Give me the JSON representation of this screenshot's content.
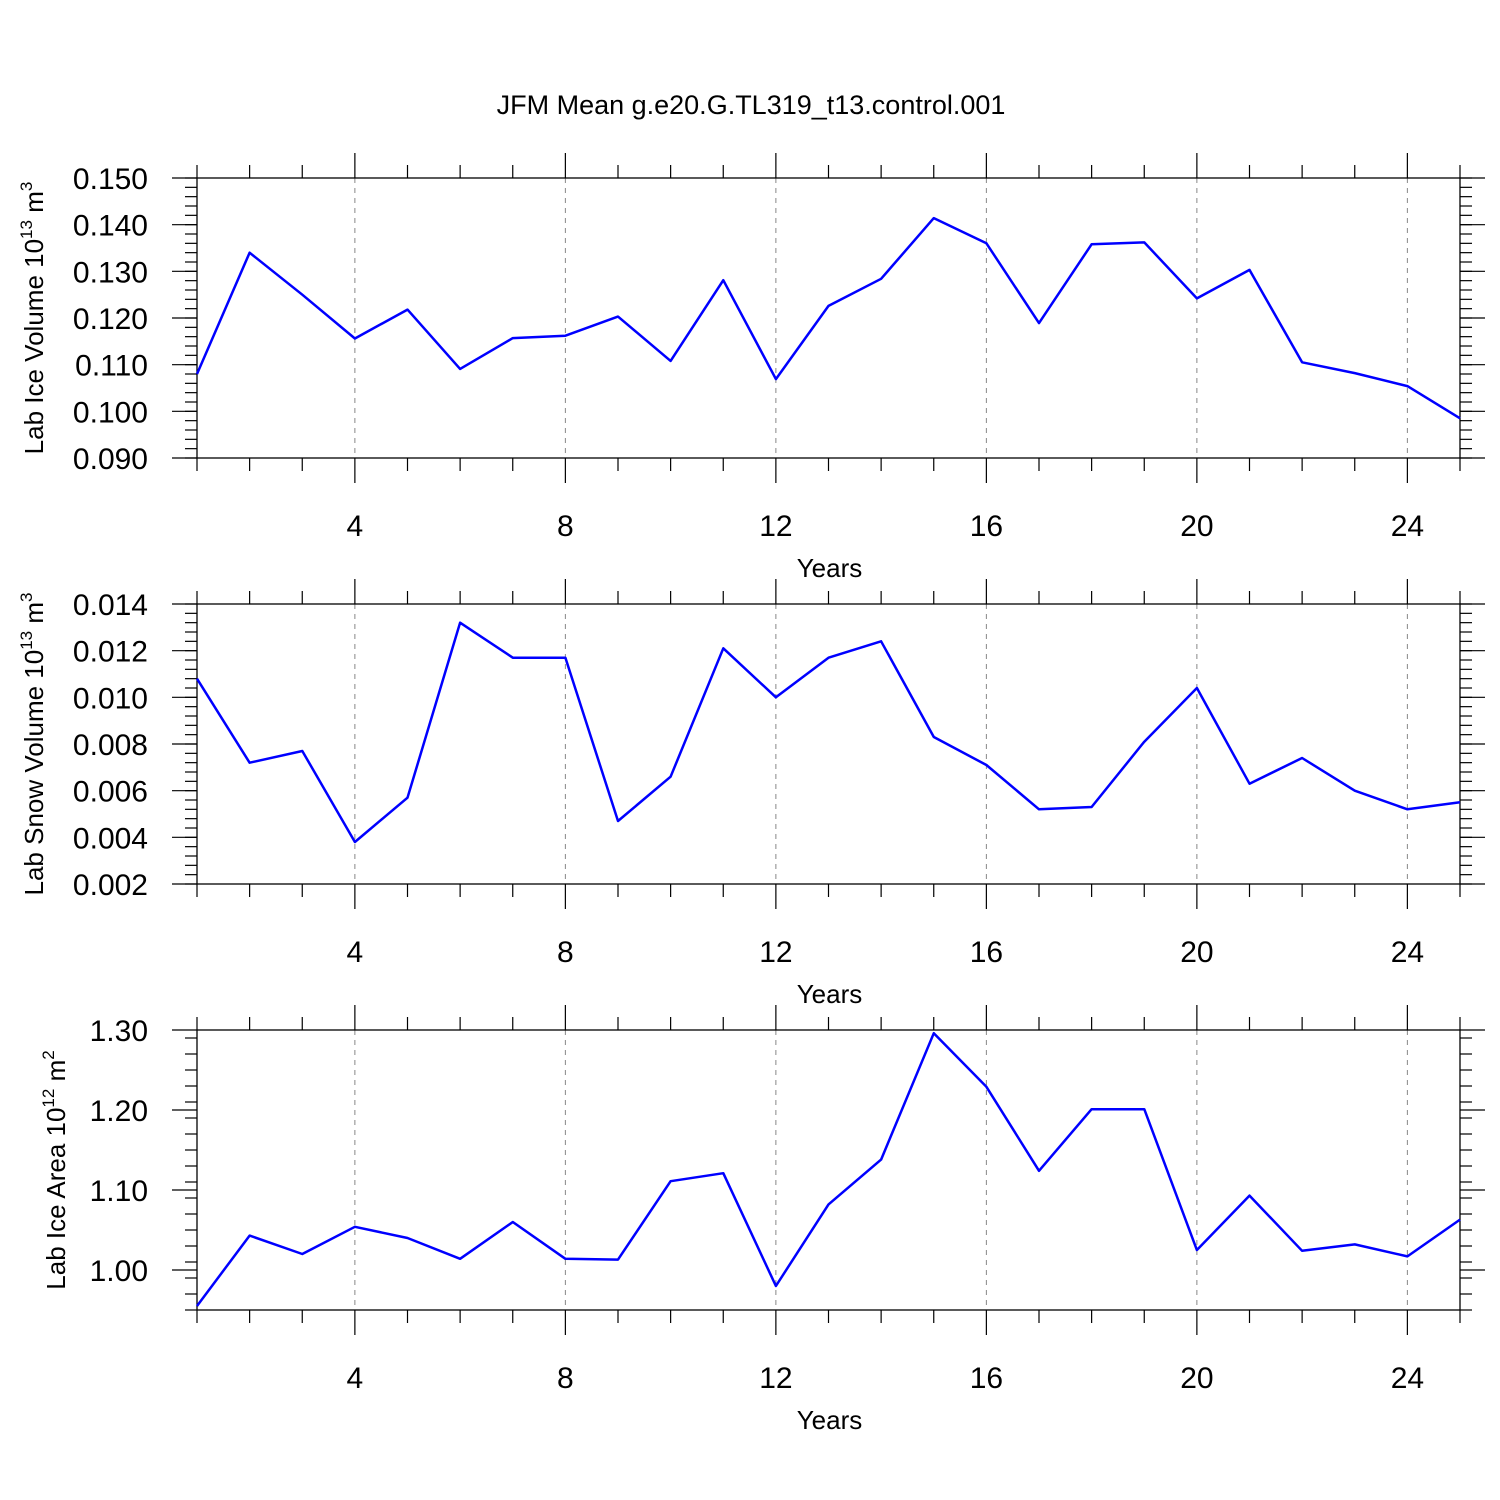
{
  "title": "JFM Mean g.e20.G.TL319_t13.control.001",
  "colors": {
    "series": "#0000ff",
    "grid": "#888888",
    "axis": "#000000"
  },
  "chart_data": [
    {
      "type": "line",
      "ylabel": {
        "text": "Lab Ice Volume 10",
        "sup": "13",
        "unit": " m",
        "unit_sup": "3"
      },
      "xlabel": "Years",
      "xlim": [
        1,
        25
      ],
      "ylim": [
        0.09,
        0.15
      ],
      "xticks": [
        4,
        8,
        12,
        16,
        20,
        24
      ],
      "xtick_labels": [
        "4",
        "8",
        "12",
        "16",
        "20",
        "24"
      ],
      "yticks": [
        0.09,
        0.1,
        0.11,
        0.12,
        0.13,
        0.14,
        0.15
      ],
      "ytick_labels": [
        "0.090",
        "0.100",
        "0.110",
        "0.120",
        "0.130",
        "0.140",
        "0.150"
      ],
      "grid": "vertical dashed at major x ticks",
      "x": [
        1,
        2,
        3,
        4,
        5,
        6,
        7,
        8,
        9,
        10,
        11,
        12,
        13,
        14,
        15,
        16,
        17,
        18,
        19,
        20,
        21,
        22,
        23,
        24,
        25
      ],
      "series": [
        {
          "values": [
            0.108,
            0.134,
            0.125,
            0.1156,
            0.1218,
            0.1091,
            0.1157,
            0.1162,
            0.1203,
            0.1108,
            0.1281,
            0.1069,
            0.1226,
            0.1284,
            0.1414,
            0.136,
            0.1189,
            0.1358,
            0.1362,
            0.1242,
            0.1303,
            0.1105,
            0.1082,
            0.1054,
            0.0985
          ]
        }
      ]
    },
    {
      "type": "line",
      "ylabel": {
        "text": "Lab Snow Volume 10",
        "sup": "13",
        "unit": " m",
        "unit_sup": "3"
      },
      "xlabel": "Years",
      "xlim": [
        1,
        25
      ],
      "ylim": [
        0.002,
        0.014
      ],
      "xticks": [
        4,
        8,
        12,
        16,
        20,
        24
      ],
      "xtick_labels": [
        "4",
        "8",
        "12",
        "16",
        "20",
        "24"
      ],
      "yticks": [
        0.002,
        0.004,
        0.006,
        0.008,
        0.01,
        0.012,
        0.014
      ],
      "ytick_labels": [
        "0.002",
        "0.004",
        "0.006",
        "0.008",
        "0.010",
        "0.012",
        "0.014"
      ],
      "grid": "vertical dashed at major x ticks",
      "x": [
        1,
        2,
        3,
        4,
        5,
        6,
        7,
        8,
        9,
        10,
        11,
        12,
        13,
        14,
        15,
        16,
        17,
        18,
        19,
        20,
        21,
        22,
        23,
        24,
        25
      ],
      "series": [
        {
          "values": [
            0.0108,
            0.0072,
            0.0077,
            0.0038,
            0.0057,
            0.0132,
            0.0117,
            0.0117,
            0.0047,
            0.0066,
            0.0121,
            0.01,
            0.0117,
            0.0124,
            0.0083,
            0.0071,
            0.0052,
            0.0053,
            0.0081,
            0.0104,
            0.0063,
            0.0074,
            0.006,
            0.0052,
            0.0055
          ]
        }
      ]
    },
    {
      "type": "line",
      "ylabel": {
        "text": "Lab Ice Area 10",
        "sup": "12",
        "unit": " m",
        "unit_sup": "2"
      },
      "xlabel": "Years",
      "xlim": [
        1,
        25
      ],
      "ylim": [
        0.95,
        1.3
      ],
      "xticks": [
        4,
        8,
        12,
        16,
        20,
        24
      ],
      "xtick_labels": [
        "4",
        "8",
        "12",
        "16",
        "20",
        "24"
      ],
      "yticks": [
        1.0,
        1.1,
        1.2,
        1.3
      ],
      "ytick_labels": [
        "1.00",
        "1.10",
        "1.20",
        "1.30"
      ],
      "grid": "vertical dashed at major x ticks",
      "x": [
        1,
        2,
        3,
        4,
        5,
        6,
        7,
        8,
        9,
        10,
        11,
        12,
        13,
        14,
        15,
        16,
        17,
        18,
        19,
        20,
        21,
        22,
        23,
        24,
        25
      ],
      "series": [
        {
          "values": [
            0.955,
            1.043,
            1.02,
            1.054,
            1.04,
            1.014,
            1.06,
            1.014,
            1.013,
            1.111,
            1.121,
            0.98,
            1.082,
            1.138,
            1.296,
            1.229,
            1.124,
            1.201,
            1.201,
            1.025,
            1.093,
            1.024,
            1.032,
            1.017,
            1.063
          ]
        }
      ]
    }
  ]
}
